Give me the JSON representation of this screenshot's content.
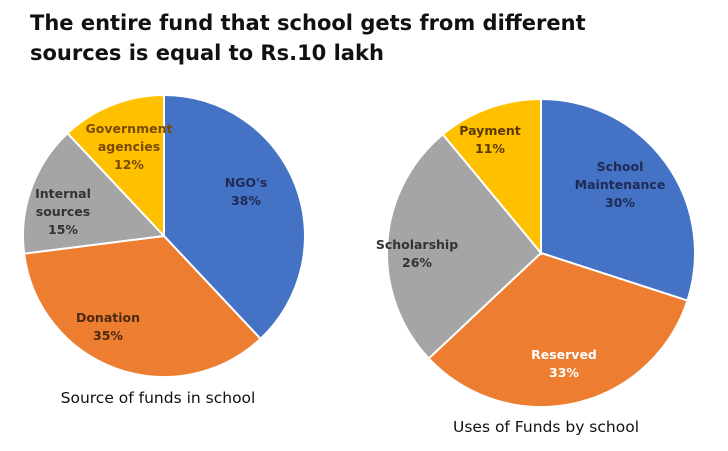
{
  "heading": {
    "line1": "The entire fund that school gets from different",
    "line2": "sources is equal to Rs.10 lakh"
  },
  "chart_data": [
    {
      "type": "pie",
      "title": "Source of funds in school",
      "slices": [
        {
          "label": "NGO's",
          "value": 38,
          "value_label": "38%",
          "color": "#4472C4",
          "text_color": "#1f2a55"
        },
        {
          "label": "Donation",
          "value": 35,
          "value_label": "35%",
          "color": "#ED7D31",
          "text_color": "#4a2a10"
        },
        {
          "label": "Internal sources",
          "value": 15,
          "value_label": "15%",
          "color": "#A5A5A5",
          "text_color": "#333333"
        },
        {
          "label": "Government agencies",
          "value": 12,
          "value_label": "12%",
          "color": "#FFC000",
          "text_color": "#7a4a00"
        }
      ]
    },
    {
      "type": "pie",
      "title": "Uses of Funds by school",
      "slices": [
        {
          "label": "School Maintenance",
          "value": 30,
          "value_label": "30%",
          "color": "#4472C4",
          "text_color": "#1f2a55"
        },
        {
          "label": "Reserved",
          "value": 33,
          "value_label": "33%",
          "color": "#ED7D31",
          "text_color": "#ffffff"
        },
        {
          "label": "Scholarship",
          "value": 26,
          "value_label": "26%",
          "color": "#A5A5A5",
          "text_color": "#333333"
        },
        {
          "label": "Payment",
          "value": 11,
          "value_label": "11%",
          "color": "#FFC000",
          "text_color": "#5a3a00"
        }
      ]
    }
  ]
}
